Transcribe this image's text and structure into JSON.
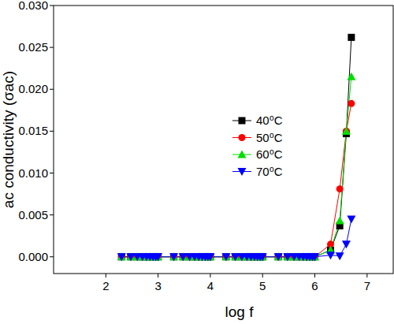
{
  "chart_data": {
    "type": "line",
    "x_label": "log f",
    "y_label": "ac conductivity  (σac)",
    "x": [
      2.301,
      2.477,
      2.602,
      2.699,
      2.778,
      2.845,
      2.903,
      2.954,
      3.0,
      3.301,
      3.477,
      3.602,
      3.699,
      3.778,
      3.845,
      3.903,
      3.954,
      4.0,
      4.301,
      4.477,
      4.602,
      4.699,
      4.778,
      4.845,
      4.903,
      4.954,
      5.0,
      5.301,
      5.477,
      5.602,
      5.699,
      5.778,
      5.845,
      5.903,
      5.954,
      6.0,
      6.301,
      6.477,
      6.602,
      6.699
    ],
    "series": [
      {
        "name": "40⁰C",
        "color": "#000000",
        "marker": "square",
        "values": [
          0,
          0,
          0,
          0,
          0,
          0,
          0,
          0,
          0,
          0,
          0,
          0,
          0,
          0,
          0,
          0,
          0,
          0,
          0,
          0,
          0,
          0,
          0,
          0,
          0,
          0,
          0,
          0,
          0,
          0,
          0,
          0,
          0,
          0,
          0,
          0,
          0.0008,
          0.0037,
          0.0147,
          0.0262
        ]
      },
      {
        "name": "50⁰C",
        "color": "#ff0000",
        "marker": "circle",
        "values": [
          0,
          0,
          0,
          0,
          0,
          0,
          0,
          0,
          0,
          0,
          0,
          0,
          0,
          0,
          0,
          0,
          0,
          0,
          0,
          0,
          0,
          0,
          0,
          0,
          0,
          0,
          0,
          0,
          0,
          0,
          0,
          0,
          0,
          0,
          0,
          0,
          0.0015,
          0.0081,
          0.015,
          0.0183
        ]
      },
      {
        "name": "60⁰C",
        "color": "#00dd00",
        "marker": "triangle-up",
        "values": [
          0,
          0,
          0,
          0,
          0,
          0,
          0,
          0,
          0,
          0,
          0,
          0,
          0,
          0,
          0,
          0,
          0,
          0,
          0,
          0,
          0,
          0,
          0,
          0,
          0,
          0,
          0,
          0,
          0,
          0,
          0,
          0,
          0,
          0,
          0,
          0,
          0.0008,
          0.0043,
          0.015,
          0.0215
        ]
      },
      {
        "name": "70⁰C",
        "color": "#0000ff",
        "marker": "triangle-down",
        "values": [
          0,
          0,
          0,
          0,
          0,
          0,
          0,
          0,
          0,
          0,
          0,
          0,
          0,
          0,
          0,
          0,
          0,
          0,
          0,
          0,
          0,
          0,
          0,
          0,
          0,
          0,
          0,
          0,
          0,
          0,
          0,
          0,
          0,
          0,
          0,
          0,
          0.0002,
          0.0001,
          0.0015,
          0.0045
        ]
      }
    ],
    "xlim": [
      1,
      7.5
    ],
    "xticks": [
      2,
      3,
      4,
      5,
      6,
      7
    ],
    "ylim": [
      -0.002,
      0.03
    ],
    "yticks": [
      {
        "value": 0,
        "label": "0.000"
      },
      {
        "value": 0.005,
        "label": "0.005"
      },
      {
        "value": 0.01,
        "label": "0.010"
      },
      {
        "value": 0.015,
        "label": "0.015"
      },
      {
        "value": 0.02,
        "label": "0.020"
      },
      {
        "value": 0.025,
        "label": "0.025"
      },
      {
        "value": 0.03,
        "label": "0.030"
      }
    ],
    "grid": false,
    "legend": "center"
  }
}
